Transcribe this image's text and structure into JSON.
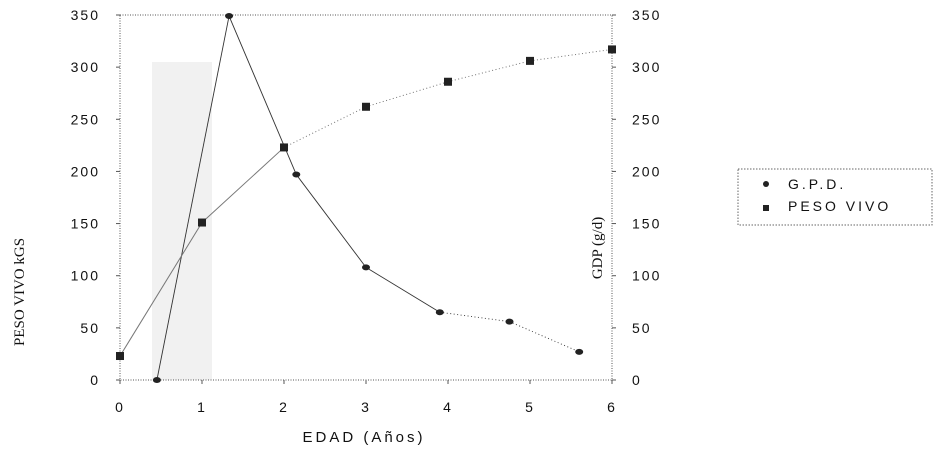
{
  "chart_data": {
    "type": "line",
    "title": "",
    "xlabel": "EDAD (Años)",
    "ylabel": "PESO VIVO kGS",
    "y2label": "GDP (g/d)",
    "xlim": [
      0,
      6
    ],
    "ylim": [
      0,
      350
    ],
    "y2lim": [
      0,
      350
    ],
    "x_ticks": [
      "0",
      "1",
      "2",
      "3",
      "4",
      "5",
      "6"
    ],
    "y_ticks": [
      "0",
      "50",
      "100",
      "150",
      "200",
      "250",
      "300",
      "350"
    ],
    "y2_ticks": [
      "0",
      "50",
      "100",
      "150",
      "200",
      "250",
      "300",
      "350"
    ],
    "grid": false,
    "legend_position": "right",
    "series": [
      {
        "name": "G.P.D.",
        "marker": "circle",
        "axis": "y2",
        "color": "#222222",
        "x": [
          0.45,
          1.33,
          2.15,
          3.0,
          3.9,
          4.75,
          5.6
        ],
        "y": [
          0,
          349,
          197,
          108,
          65,
          56,
          27
        ]
      },
      {
        "name": "PESO VIVO",
        "marker": "square",
        "axis": "y",
        "color": "#222222",
        "x": [
          0,
          1,
          2,
          3,
          4,
          5,
          6
        ],
        "y": [
          23,
          151,
          223,
          262,
          286,
          306,
          317
        ]
      }
    ]
  }
}
